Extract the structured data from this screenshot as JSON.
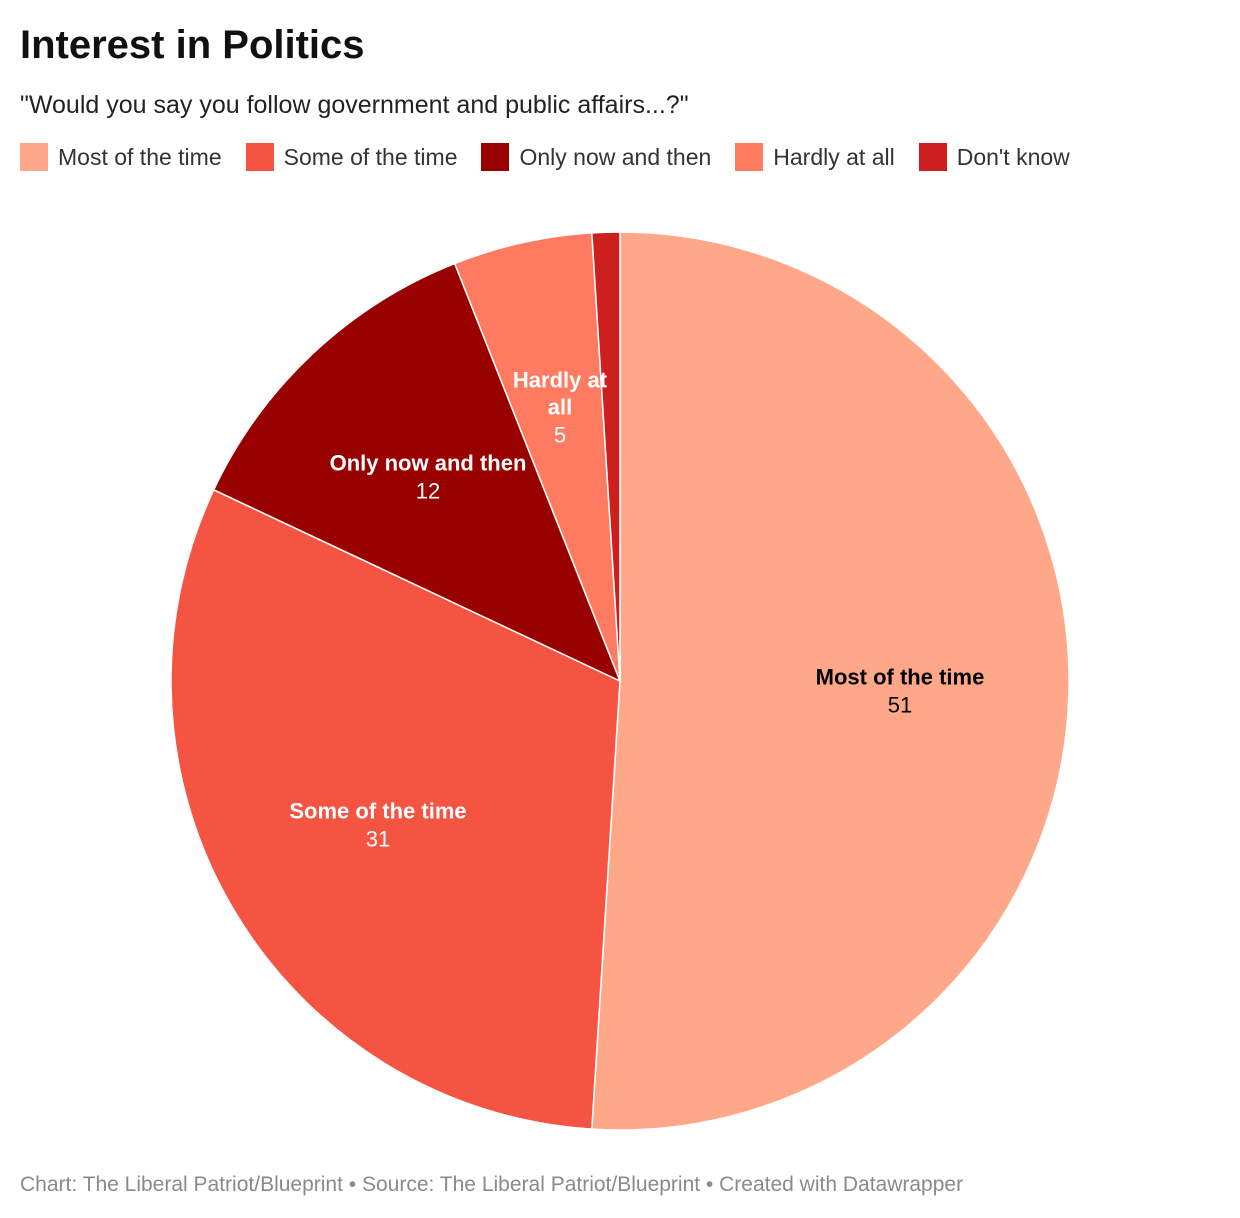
{
  "chart_data": {
    "type": "pie",
    "title": "Interest in Politics",
    "subtitle": "\"Would you say you follow government and public affairs...?\"",
    "legend_position": "top",
    "categories": [
      "Most of the time",
      "Some of the time",
      "Only now and then",
      "Hardly at all",
      "Don't know"
    ],
    "values": [
      51,
      31,
      12,
      5,
      1
    ],
    "slice_labels": [
      {
        "name_lines": [
          "Most of the time"
        ],
        "value": "51",
        "text_color": "#000000"
      },
      {
        "name_lines": [
          "Some of the time"
        ],
        "value": "31",
        "text_color": "#ffffff"
      },
      {
        "name_lines": [
          "Only now and then"
        ],
        "value": "12",
        "text_color": "#ffffff"
      },
      {
        "name_lines": [
          "Hardly at",
          "all"
        ],
        "value": "5",
        "text_color": "#ffffff"
      },
      {
        "name_lines": [],
        "value": "",
        "text_color": "#ffffff"
      }
    ],
    "colors": [
      "#fea889",
      "#f65442",
      "#990000",
      "#fe7b62",
      "#ce1f1f"
    ],
    "footer": "Chart: The Liberal Patriot/Blueprint • Source: The Liberal Patriot/Blueprint • Created with Datawrapper"
  }
}
